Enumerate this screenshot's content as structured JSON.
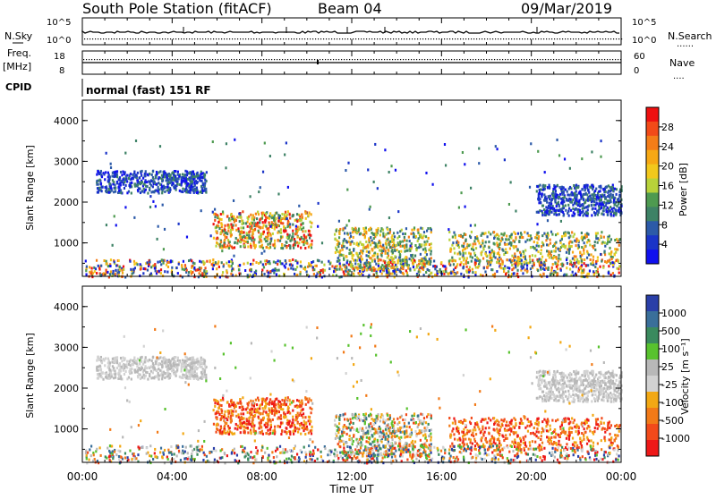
{
  "header": {
    "station": "South Pole Station (fitACF)",
    "beam": "Beam 04",
    "date": "09/Mar/2019"
  },
  "noise_panel": {
    "left_label": "N.Sky",
    "right_label": "N.Search",
    "left_ticks": [
      "10^5",
      "10^0"
    ],
    "right_ticks": [
      "10^5",
      "10^0"
    ]
  },
  "freq_panel": {
    "left_label_1": "Freq.",
    "left_label_2": "[MHz]",
    "right_label": "Nave",
    "left_ticks": [
      "18",
      "8"
    ],
    "right_ticks": [
      "60",
      "0"
    ]
  },
  "cpid": {
    "label": "CPID",
    "value": "normal (fast) 151 RF"
  },
  "x_axis": {
    "label": "Time UT",
    "ticks": [
      "00:00",
      "04:00",
      "08:00",
      "12:00",
      "16:00",
      "20:00",
      "00:00"
    ]
  },
  "power_colorbar": {
    "title": "Power [dB]",
    "ticks": [
      "28",
      "24",
      "20",
      "16",
      "12",
      "8",
      "4"
    ],
    "colors": [
      "#ee1010",
      "#f24a18",
      "#f47d18",
      "#f6a814",
      "#f2c81c",
      "#b8d23a",
      "#4e9a50",
      "#3e8266",
      "#2c5aa8",
      "#1a34c8",
      "#1010ee"
    ]
  },
  "velocity_colorbar": {
    "title": "Velocity [m s⁻¹]",
    "ticks": [
      "1000",
      "500",
      "100",
      "25",
      "-25",
      "-100",
      "-500",
      "-1000"
    ],
    "colors": [
      "#2a3fa8",
      "#3a6f9a",
      "#3a8a5e",
      "#58c22e",
      "#b8b8b8",
      "#d2d2d2",
      "#f2a814",
      "#f27a18",
      "#f24a1a",
      "#ee1818"
    ]
  },
  "chart_data": [
    {
      "type": "heatmap",
      "title": "",
      "xlabel": "Time UT",
      "ylabel": "Slant Range [km]",
      "y_ticks": [
        "1000",
        "2000",
        "3000",
        "4000"
      ],
      "xlim": [
        "00:00",
        "24:00"
      ],
      "ylim": [
        180,
        4500
      ],
      "colorbar": "Power [dB]",
      "regions": [
        {
          "t0": 0.6,
          "t1": 5.5,
          "r0": 2250,
          "r1": 2800,
          "level": "low"
        },
        {
          "t0": 5.8,
          "t1": 10.2,
          "r0": 900,
          "r1": 1800,
          "level": "high"
        },
        {
          "t0": 11.2,
          "t1": 15.5,
          "r0": 350,
          "r1": 1400,
          "level": "mid"
        },
        {
          "t0": 16.3,
          "t1": 23.9,
          "r0": 500,
          "r1": 1300,
          "level": "mid"
        },
        {
          "t0": 20.2,
          "t1": 24.0,
          "r0": 1700,
          "r1": 2450,
          "level": "low"
        }
      ]
    },
    {
      "type": "heatmap",
      "title": "",
      "xlabel": "Time UT",
      "ylabel": "Slant Range [km]",
      "y_ticks": [
        "1000",
        "2000",
        "3000",
        "4000"
      ],
      "xlim": [
        "00:00",
        "24:00"
      ],
      "ylim": [
        180,
        4500
      ],
      "colorbar": "Velocity [m s⁻¹]",
      "regions": [
        {
          "t0": 0.6,
          "t1": 5.5,
          "r0": 2250,
          "r1": 2800,
          "level": "near-zero"
        },
        {
          "t0": 5.8,
          "t1": 10.2,
          "r0": 900,
          "r1": 1800,
          "level": "negative"
        },
        {
          "t0": 11.2,
          "t1": 15.5,
          "r0": 350,
          "r1": 1400,
          "level": "mixed"
        },
        {
          "t0": 16.3,
          "t1": 23.9,
          "r0": 500,
          "r1": 1300,
          "level": "negative"
        },
        {
          "t0": 20.2,
          "t1": 24.0,
          "r0": 1700,
          "r1": 2450,
          "level": "near-zero"
        }
      ]
    }
  ]
}
